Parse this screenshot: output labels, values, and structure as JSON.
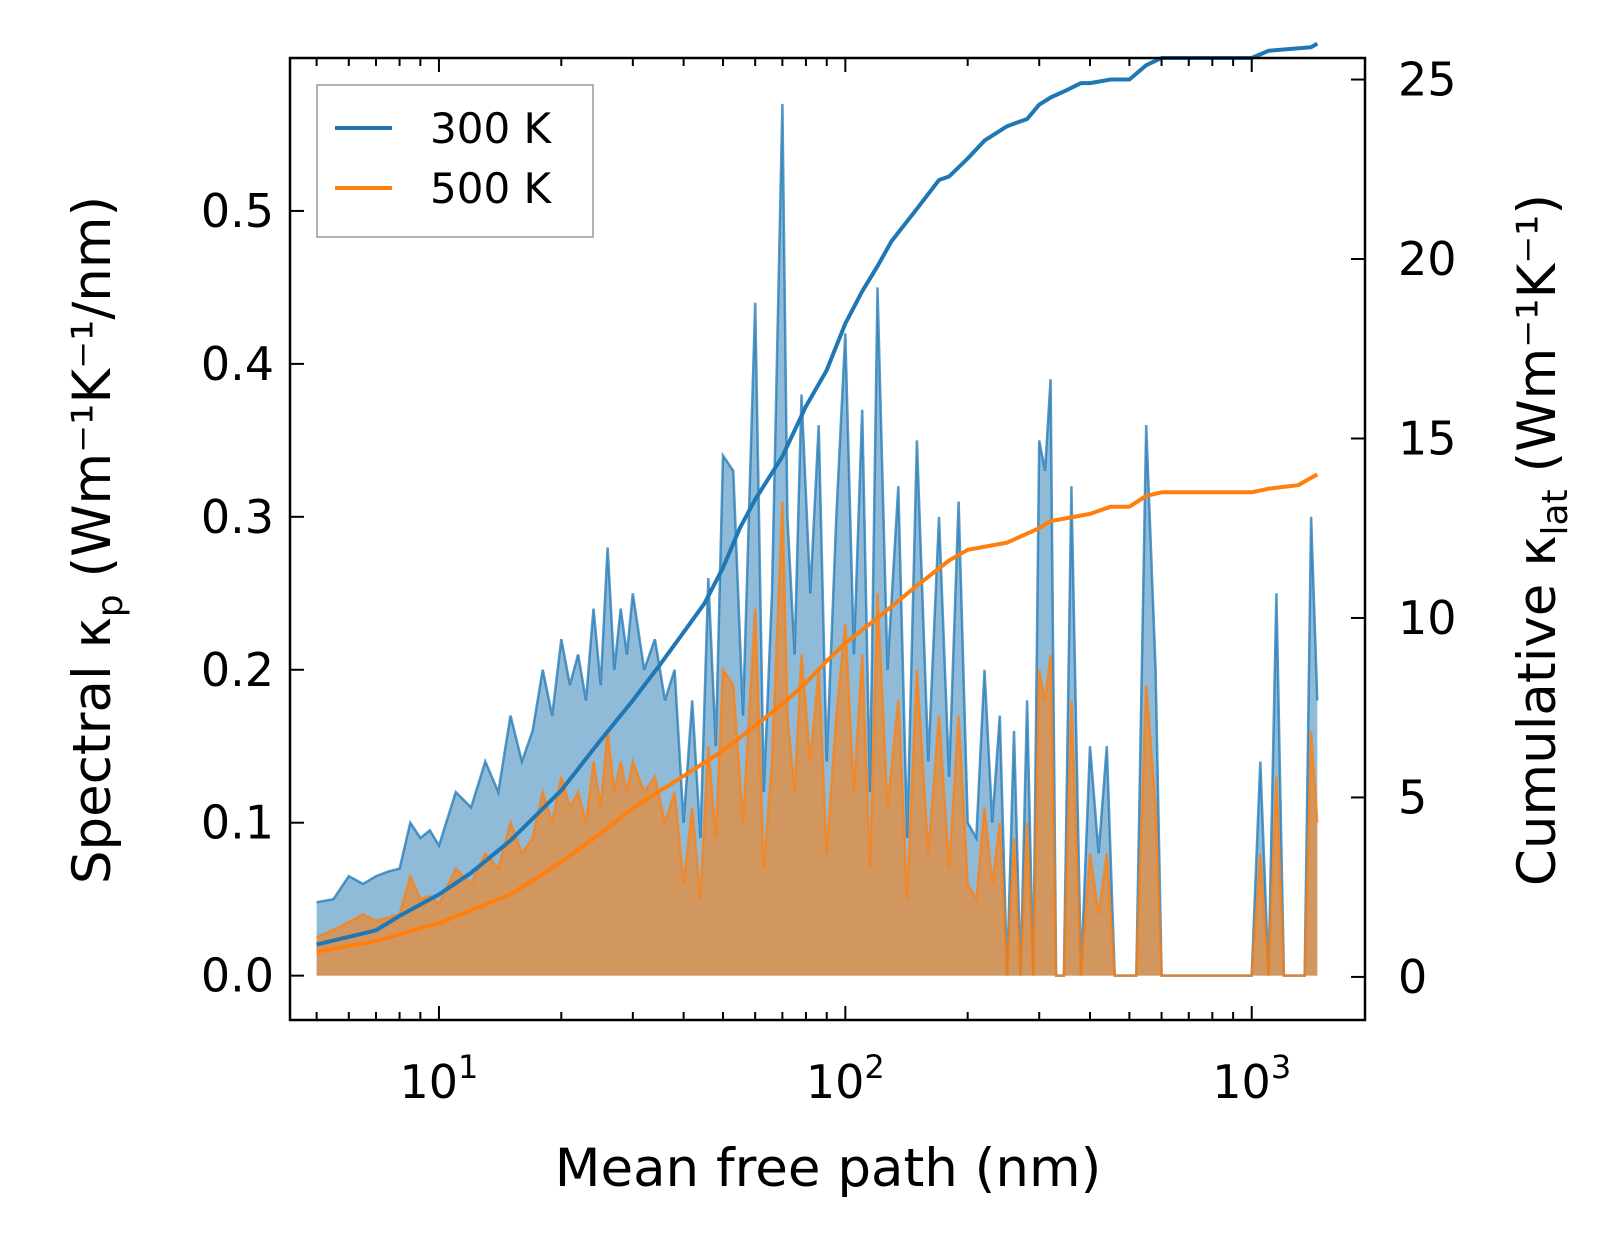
{
  "chart_data": {
    "type": "line",
    "xscale": "log",
    "xlabel": "Mean free path (nm)",
    "ylabel_left": {
      "prefix": "Spectral κ",
      "sub": "p",
      "suffix": " (Wm⁻¹K⁻¹/nm)"
    },
    "ylabel_right": {
      "prefix": "Cumulative κ",
      "sub": "lat",
      "suffix": " (Wm⁻¹K⁻¹)"
    },
    "xlim": [
      4.3,
      1900
    ],
    "ylim_left": [
      -0.029,
      0.6
    ],
    "ylim_right": [
      -1.2,
      25.6
    ],
    "x_ticks": [
      {
        "value": 10,
        "base": "10",
        "exp": "1"
      },
      {
        "value": 100,
        "base": "10",
        "exp": "2"
      },
      {
        "value": 1000,
        "base": "10",
        "exp": "3"
      }
    ],
    "y_ticks_left": [
      {
        "value": 0.0,
        "label": "0.0"
      },
      {
        "value": 0.1,
        "label": "0.1"
      },
      {
        "value": 0.2,
        "label": "0.2"
      },
      {
        "value": 0.3,
        "label": "0.3"
      },
      {
        "value": 0.4,
        "label": "0.4"
      },
      {
        "value": 0.5,
        "label": "0.5"
      }
    ],
    "y_ticks_right": [
      {
        "value": 0,
        "label": "0"
      },
      {
        "value": 5,
        "label": "5"
      },
      {
        "value": 10,
        "label": "10"
      },
      {
        "value": 15,
        "label": "15"
      },
      {
        "value": 20,
        "label": "20"
      },
      {
        "value": 25,
        "label": "25"
      }
    ],
    "legend": {
      "position": "top-left",
      "entries": [
        "300 K",
        "500 K"
      ]
    },
    "series": [
      {
        "name": "300 K",
        "color": "#1f77b4",
        "fill_color": "#1f77b4",
        "spectral": {
          "x": [
            5,
            5.5,
            6,
            6.5,
            7,
            7.5,
            8,
            8.5,
            9,
            9.5,
            10,
            11,
            12,
            13,
            14,
            15,
            16,
            17,
            18,
            19,
            20,
            21,
            22,
            23,
            24,
            25,
            26,
            27,
            28,
            29,
            30,
            32,
            34,
            36,
            38,
            40,
            42,
            44,
            46,
            48,
            50,
            53,
            56,
            60,
            63,
            66,
            70,
            72,
            75,
            78,
            82,
            86,
            90,
            95,
            100,
            105,
            110,
            115,
            120,
            127,
            135,
            142,
            150,
            160,
            170,
            180,
            190,
            200,
            210,
            220,
            230,
            240,
            250,
            260,
            270,
            280,
            290,
            300,
            310,
            320,
            330,
            345,
            360,
            380,
            400,
            420,
            440,
            460,
            480,
            500,
            520,
            550,
            580,
            600,
            620,
            650,
            700,
            800,
            900,
            1000,
            1050,
            1100,
            1150,
            1200,
            1250,
            1300,
            1350,
            1400,
            1450
          ],
          "y": [
            0.048,
            0.05,
            0.065,
            0.06,
            0.065,
            0.068,
            0.07,
            0.1,
            0.09,
            0.095,
            0.085,
            0.12,
            0.11,
            0.14,
            0.12,
            0.17,
            0.14,
            0.16,
            0.2,
            0.17,
            0.22,
            0.19,
            0.21,
            0.18,
            0.24,
            0.19,
            0.28,
            0.2,
            0.24,
            0.21,
            0.25,
            0.2,
            0.22,
            0.18,
            0.2,
            0.1,
            0.18,
            0.09,
            0.26,
            0.15,
            0.34,
            0.33,
            0.17,
            0.44,
            0.12,
            0.25,
            0.57,
            0.3,
            0.21,
            0.38,
            0.25,
            0.36,
            0.14,
            0.3,
            0.42,
            0.21,
            0.37,
            0.12,
            0.45,
            0.2,
            0.32,
            0.09,
            0.35,
            0.14,
            0.3,
            0.13,
            0.31,
            0.1,
            0.09,
            0.2,
            0.1,
            0.17,
            0.0,
            0.16,
            0.0,
            0.18,
            0.0,
            0.35,
            0.33,
            0.39,
            0.0,
            0.0,
            0.32,
            0.0,
            0.15,
            0.08,
            0.15,
            0.0,
            0.0,
            0.0,
            0.0,
            0.36,
            0.2,
            0.0,
            0.0,
            0.0,
            0.0,
            0.0,
            0.0,
            0.0,
            0.14,
            0.0,
            0.25,
            0.0,
            0.0,
            0.0,
            0.0,
            0.3,
            0.18
          ]
        },
        "cumulative": {
          "x": [
            5,
            7,
            8,
            10,
            12,
            15,
            20,
            25,
            30,
            35,
            40,
            45,
            50,
            55,
            60,
            70,
            80,
            90,
            100,
            110,
            120,
            130,
            150,
            170,
            180,
            200,
            220,
            250,
            280,
            300,
            320,
            350,
            380,
            400,
            450,
            500,
            550,
            600,
            700,
            800,
            1000,
            1100,
            1400,
            1450
          ],
          "y": [
            0.9,
            1.3,
            1.7,
            2.3,
            2.9,
            3.8,
            5.2,
            6.6,
            7.7,
            8.7,
            9.6,
            10.4,
            11.4,
            12.5,
            13.3,
            14.5,
            15.9,
            16.9,
            18.2,
            19.1,
            19.8,
            20.5,
            21.4,
            22.2,
            22.3,
            22.8,
            23.3,
            23.7,
            23.9,
            24.3,
            24.5,
            24.7,
            24.9,
            24.9,
            25.0,
            25.0,
            25.4,
            25.6,
            25.6,
            25.6,
            25.6,
            25.8,
            25.9,
            26.0
          ]
        }
      },
      {
        "name": "500 K",
        "color": "#ff7f0e",
        "fill_color": "#ff7f0e",
        "spectral": {
          "x": [
            5,
            5.5,
            6,
            6.5,
            7,
            7.5,
            8,
            8.5,
            9,
            9.5,
            10,
            11,
            12,
            13,
            14,
            15,
            16,
            17,
            18,
            19,
            20,
            21,
            22,
            23,
            24,
            25,
            26,
            27,
            28,
            29,
            30,
            32,
            34,
            36,
            38,
            40,
            42,
            44,
            46,
            48,
            50,
            53,
            56,
            60,
            63,
            66,
            70,
            72,
            75,
            78,
            82,
            86,
            90,
            95,
            100,
            105,
            110,
            115,
            120,
            127,
            135,
            142,
            150,
            160,
            170,
            180,
            190,
            200,
            210,
            220,
            230,
            240,
            250,
            260,
            270,
            280,
            290,
            300,
            310,
            320,
            330,
            345,
            360,
            380,
            400,
            420,
            440,
            460,
            480,
            500,
            520,
            550,
            580,
            600,
            620,
            650,
            700,
            800,
            900,
            1000,
            1050,
            1100,
            1150,
            1200,
            1250,
            1300,
            1350,
            1400,
            1450
          ],
          "y": [
            0.025,
            0.03,
            0.035,
            0.04,
            0.036,
            0.038,
            0.04,
            0.065,
            0.05,
            0.052,
            0.047,
            0.07,
            0.06,
            0.08,
            0.07,
            0.1,
            0.08,
            0.09,
            0.12,
            0.1,
            0.13,
            0.11,
            0.12,
            0.1,
            0.14,
            0.11,
            0.16,
            0.12,
            0.14,
            0.12,
            0.14,
            0.12,
            0.13,
            0.1,
            0.12,
            0.06,
            0.11,
            0.05,
            0.15,
            0.09,
            0.2,
            0.19,
            0.1,
            0.24,
            0.07,
            0.14,
            0.31,
            0.17,
            0.12,
            0.21,
            0.14,
            0.2,
            0.08,
            0.17,
            0.23,
            0.12,
            0.21,
            0.07,
            0.25,
            0.11,
            0.18,
            0.05,
            0.2,
            0.08,
            0.17,
            0.07,
            0.17,
            0.06,
            0.05,
            0.11,
            0.06,
            0.1,
            0.0,
            0.09,
            0.0,
            0.1,
            0.0,
            0.2,
            0.18,
            0.21,
            0.0,
            0.0,
            0.18,
            0.0,
            0.08,
            0.04,
            0.08,
            0.0,
            0.0,
            0.0,
            0.0,
            0.19,
            0.11,
            0.0,
            0.0,
            0.0,
            0.0,
            0.0,
            0.0,
            0.0,
            0.08,
            0.0,
            0.13,
            0.0,
            0.0,
            0.0,
            0.0,
            0.16,
            0.1
          ]
        },
        "cumulative": {
          "x": [
            5,
            7,
            10,
            15,
            20,
            25,
            30,
            40,
            50,
            60,
            70,
            80,
            90,
            100,
            120,
            150,
            180,
            200,
            250,
            300,
            320,
            400,
            450,
            500,
            550,
            600,
            1000,
            1100,
            1300,
            1450
          ],
          "y": [
            0.7,
            1.0,
            1.5,
            2.3,
            3.2,
            4.0,
            4.7,
            5.6,
            6.3,
            7.0,
            7.6,
            8.2,
            8.8,
            9.3,
            10.0,
            10.9,
            11.6,
            11.9,
            12.1,
            12.5,
            12.7,
            12.9,
            13.1,
            13.1,
            13.4,
            13.5,
            13.5,
            13.6,
            13.7,
            14.0
          ]
        }
      }
    ]
  }
}
